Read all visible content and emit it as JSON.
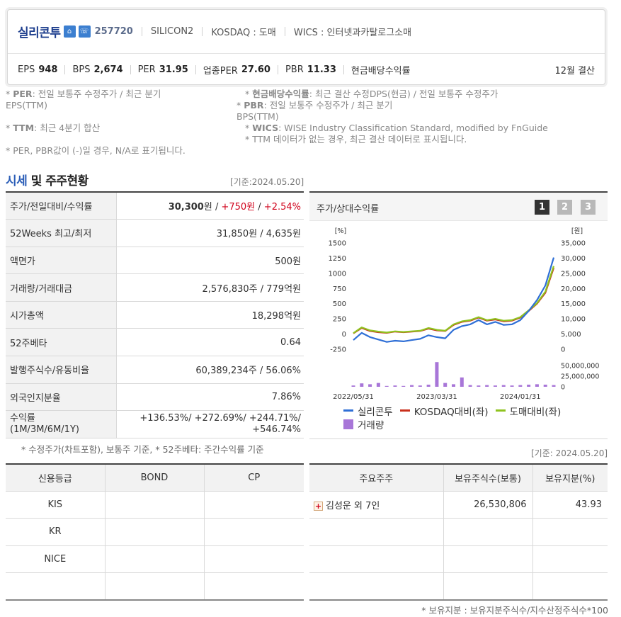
{
  "header": {
    "company": "실리콘투",
    "code": "257720",
    "market_name": "SILICON2",
    "market": "KOSDAQ : 도매",
    "wics": "WICS : 인터넷과카탈로그소매",
    "eps_label": "EPS",
    "eps": "948",
    "bps_label": "BPS",
    "bps": "2,674",
    "per_label": "PER",
    "per": "31.95",
    "iper_label": "업종PER",
    "iper": "27.60",
    "pbr_label": "PBR",
    "pbr": "11.33",
    "div_label": "현금배당수익률",
    "settle": "12월 결산"
  },
  "notes": {
    "n1a": "* ",
    "n1b": "PER",
    "n1c": ": 전일 보통주 수정주가 / 최근 분기",
    "n1d": "EPS(TTM)",
    "n2a": "* ",
    "n2b": "현금배당수익률",
    "n2c": ": 최근 결산 수정DPS(현금) / 전일 보통주 수정주가",
    "n3a": "* ",
    "n3b": "PBR",
    "n3c": ": 전일 보통주 수정주가 / 최근 분기",
    "n3d": "BPS(TTM)",
    "n4a": "* ",
    "n4b": "TTM",
    "n4c": ": 최근 4분기 합산",
    "n5a": "* ",
    "n5b": "WICS",
    "n5c": ": WISE Industry Classification Standard, modified by FnGuide",
    "n6": "* TTM 데이터가 없는 경우, 최근 결산 데이터로 표시됩니다.",
    "n7": "* PER, PBR값이 (-)일 경우, N/A로 표기됩니다."
  },
  "section": {
    "title_blue": "시세",
    "title_rest": " 및 주주현황",
    "base_date": "[기준:2024.05.20]",
    "base_date2": "[기준: 2024.05.20]"
  },
  "price_table": {
    "r1_k": "주가/전일대비/수익률",
    "r1_price": "30,300",
    "r1_unit": "원 / ",
    "r1_chg": "+750원",
    "r1_sep": " / ",
    "r1_pct": "+2.54%",
    "r2_k": "52Weeks 최고/최저",
    "r2_v": "31,850원 / 4,635원",
    "r3_k": "액면가",
    "r3_v": "500원",
    "r4_k": "거래량/거래대금",
    "r4_v": "2,576,830주 / 779억원",
    "r5_k": "시가총액",
    "r5_v": "18,298억원",
    "r6_k": "52주베타",
    "r6_v": "0.64",
    "r7_k": "발행주식수/유동비율",
    "r7_v": "60,389,234주 / 56.06%",
    "r8_k": "외국인지분율",
    "r8_v": "7.86%",
    "r9_k": "수익률",
    "r9_k2": "(1M/3M/6M/1Y)",
    "r9_v1": "+136.53%/ +272.69%/ +244.71%/",
    "r9_v2": "+546.74%"
  },
  "foot_note1": "* 수정주가(차트포함), 보통주 기준, * 52주베타: 주간수익률 기준",
  "chart": {
    "title": "주가/상대수익률",
    "pages": [
      "1",
      "2",
      "3"
    ],
    "left_unit": "[%]",
    "right_unit": "[원]",
    "left_ticks": [
      "1500",
      "1250",
      "1000",
      "750",
      "500",
      "250",
      "0",
      "-250"
    ],
    "right_ticks": [
      "35,000",
      "30,000",
      "25,000",
      "20,000",
      "15,000",
      "10,000",
      "5,000",
      "0"
    ],
    "vol_ticks": [
      "50,000,000",
      "25,000,000",
      "0"
    ],
    "x_ticks": [
      "2022/05/31",
      "2023/03/31",
      "2024/01/31"
    ],
    "legend": {
      "s1": "실리콘투",
      "s2": "KOSDAQ대비(좌)",
      "s3": "도매대비(좌)",
      "s4": "거래량"
    },
    "colors": {
      "s1": "#2f6fd6",
      "s2": "#c9301c",
      "s3": "#8fc31f",
      "vol": "#a876d8"
    }
  },
  "chart_data": {
    "type": "line",
    "x": [
      "2022/05",
      "2022/06",
      "2022/07",
      "2022/08",
      "2022/09",
      "2022/10",
      "2022/11",
      "2022/12",
      "2023/01",
      "2023/02",
      "2023/03",
      "2023/04",
      "2023/05",
      "2023/06",
      "2023/07",
      "2023/08",
      "2023/09",
      "2023/10",
      "2023/11",
      "2023/12",
      "2024/01",
      "2024/02",
      "2024/03",
      "2024/04",
      "2024/05"
    ],
    "series": [
      {
        "name": "실리콘투",
        "values": [
          -100,
          20,
          -50,
          -90,
          -130,
          -110,
          -120,
          -100,
          -80,
          -20,
          -50,
          -70,
          70,
          130,
          160,
          230,
          160,
          200,
          150,
          160,
          230,
          380,
          560,
          800,
          1260
        ]
      },
      {
        "name": "KOSDAQ대비(좌)",
        "values": [
          10,
          100,
          50,
          30,
          20,
          40,
          30,
          40,
          50,
          90,
          60,
          50,
          150,
          200,
          220,
          270,
          220,
          240,
          210,
          220,
          270,
          380,
          500,
          680,
          1090
        ]
      },
      {
        "name": "도매대비(좌)",
        "values": [
          15,
          110,
          60,
          40,
          25,
          45,
          35,
          45,
          55,
          100,
          70,
          55,
          160,
          210,
          230,
          280,
          230,
          250,
          220,
          230,
          280,
          390,
          510,
          700,
          1120
        ]
      }
    ],
    "volume": [
      3000000,
      8000000,
      6000000,
      9000000,
      2000000,
      3000000,
      2000000,
      4000000,
      3000000,
      5000000,
      58000000,
      9000000,
      6000000,
      22000000,
      4000000,
      3000000,
      4000000,
      3000000,
      4000000,
      3000000,
      4000000,
      5000000,
      6000000,
      5000000,
      4000000
    ],
    "ylim_left": [
      -250,
      1500
    ],
    "ylim_right": [
      0,
      35000
    ],
    "ylim_volume": [
      0,
      50000000
    ]
  },
  "credit_table": {
    "headers": [
      "신용등급",
      "BOND",
      "CP"
    ],
    "rows": [
      "KIS",
      "KR",
      "NICE",
      ""
    ]
  },
  "holder_table": {
    "headers": [
      "주요주주",
      "보유주식수(보통)",
      "보유지분(%)"
    ],
    "row1_name": "김성운 외 7인",
    "row1_shares": "26,530,806",
    "row1_pct": "43.93"
  },
  "foot_note2": "* 보유지분 : 보유지분주식수/지수산정주식수*100"
}
